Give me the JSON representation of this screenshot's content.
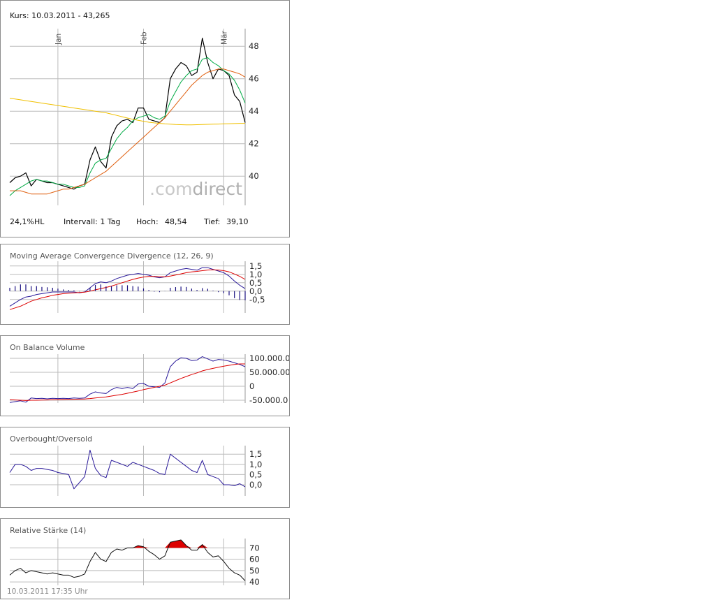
{
  "header": {
    "title": "Kurs: 10.03.2011 - 43,265"
  },
  "info": {
    "hl": "24,1%HL",
    "interval": "Intervall: 1 Tag",
    "high_label": "Hoch:",
    "high_value": "48,54",
    "low_label": "Tief:",
    "low_value": "39,10"
  },
  "brand": {
    "dot": ".",
    "com": "com",
    "direct": "direct"
  },
  "months": [
    "Jan",
    "Feb",
    "Mär"
  ],
  "footer": {
    "timestamp": "10.03.2011 17:35 Uhr"
  },
  "colors": {
    "price": "#000000",
    "ma_short": "#00aa44",
    "ma_mid": "#e06010",
    "ma_long": "#f0c000",
    "macd": "#2a1a9a",
    "signal": "#dd0000",
    "histogram": "#1a1080",
    "overbought_fill": "#dd0000",
    "grid": "#bbbbbb"
  },
  "chart_data": [
    {
      "type": "line",
      "title": "Kurs: 10.03.2011 - 43,265",
      "y_ticks": [
        "40",
        "42",
        "44",
        "46",
        "48"
      ],
      "ylim": [
        38.2,
        49.0
      ],
      "months": [
        "Jan",
        "Feb",
        "Mär"
      ],
      "month_positions": [
        9,
        25,
        40
      ],
      "n_points": 45,
      "grid": true,
      "series": [
        {
          "key": "price",
          "values": [
            39.6,
            39.9,
            40.0,
            40.2,
            39.4,
            39.8,
            39.7,
            39.6,
            39.6,
            39.5,
            39.4,
            39.3,
            39.2,
            39.4,
            39.5,
            41.0,
            41.8,
            40.9,
            40.5,
            42.4,
            43.1,
            43.4,
            43.5,
            43.3,
            44.2,
            44.2,
            43.5,
            43.4,
            43.3,
            43.6,
            46.0,
            46.6,
            47.0,
            46.8,
            46.2,
            46.4,
            48.5,
            47.0,
            46.0,
            46.6,
            46.5,
            46.2,
            45.0,
            44.6,
            43.3
          ]
        },
        {
          "key": "ma_short",
          "values": [
            38.8,
            39.1,
            39.3,
            39.5,
            39.7,
            39.8,
            39.7,
            39.7,
            39.6,
            39.5,
            39.5,
            39.4,
            39.3,
            39.3,
            39.4,
            40.2,
            40.8,
            41.0,
            41.1,
            41.7,
            42.3,
            42.7,
            43.0,
            43.4,
            43.6,
            43.7,
            43.8,
            43.6,
            43.5,
            43.7,
            44.6,
            45.2,
            45.8,
            46.2,
            46.5,
            46.6,
            47.2,
            47.3,
            47.0,
            46.8,
            46.5,
            46.3,
            45.9,
            45.3,
            44.5
          ]
        },
        {
          "key": "ma_mid",
          "values": [
            39.1,
            39.1,
            39.1,
            39.0,
            38.9,
            38.9,
            38.9,
            38.9,
            39.0,
            39.1,
            39.2,
            39.2,
            39.3,
            39.4,
            39.5,
            39.7,
            39.9,
            40.1,
            40.3,
            40.6,
            40.9,
            41.2,
            41.5,
            41.8,
            42.1,
            42.4,
            42.7,
            43.0,
            43.3,
            43.6,
            44.0,
            44.4,
            44.8,
            45.2,
            45.6,
            45.9,
            46.2,
            46.4,
            46.5,
            46.6,
            46.6,
            46.5,
            46.4,
            46.3,
            46.1
          ]
        },
        {
          "key": "ma_long",
          "values": [
            44.8,
            44.75,
            44.7,
            44.65,
            44.6,
            44.55,
            44.5,
            44.45,
            44.4,
            44.35,
            44.3,
            44.25,
            44.2,
            44.15,
            44.1,
            44.05,
            44.0,
            43.95,
            43.9,
            43.82,
            43.74,
            43.66,
            43.58,
            43.5,
            43.44,
            43.38,
            43.32,
            43.28,
            43.25,
            43.22,
            43.2,
            43.18,
            43.17,
            43.16,
            43.16,
            43.17,
            43.18,
            43.19,
            43.2,
            43.21,
            43.22,
            43.23,
            43.24,
            43.25,
            43.25
          ]
        }
      ]
    },
    {
      "type": "line",
      "title": "Moving Average Convergence Divergence (12, 26, 9)",
      "y_ticks": [
        "1,5",
        "1,0",
        "0,5",
        "0,0",
        "-0,5"
      ],
      "ylim": [
        -1.3,
        1.7
      ],
      "n_points": 45,
      "grid": true,
      "series": [
        {
          "key": "macd",
          "values": [
            -0.9,
            -0.7,
            -0.5,
            -0.35,
            -0.3,
            -0.2,
            -0.15,
            -0.1,
            -0.05,
            -0.05,
            -0.05,
            -0.05,
            -0.05,
            -0.1,
            -0.05,
            0.2,
            0.45,
            0.55,
            0.5,
            0.6,
            0.75,
            0.85,
            0.95,
            1.0,
            1.05,
            1.0,
            0.95,
            0.85,
            0.8,
            0.85,
            1.1,
            1.2,
            1.3,
            1.35,
            1.3,
            1.25,
            1.4,
            1.4,
            1.3,
            1.2,
            1.1,
            0.9,
            0.6,
            0.35,
            0.15
          ]
        },
        {
          "key": "signal",
          "values": [
            -1.1,
            -1.0,
            -0.9,
            -0.75,
            -0.6,
            -0.5,
            -0.4,
            -0.33,
            -0.25,
            -0.2,
            -0.15,
            -0.12,
            -0.1,
            -0.08,
            -0.06,
            0.0,
            0.08,
            0.15,
            0.22,
            0.3,
            0.4,
            0.5,
            0.6,
            0.7,
            0.78,
            0.84,
            0.88,
            0.88,
            0.86,
            0.86,
            0.9,
            0.96,
            1.03,
            1.1,
            1.15,
            1.18,
            1.22,
            1.26,
            1.27,
            1.26,
            1.22,
            1.15,
            1.02,
            0.88,
            0.7
          ]
        },
        {
          "key": "histogram",
          "type": "bar",
          "values": [
            0.2,
            0.3,
            0.4,
            0.4,
            0.3,
            0.3,
            0.25,
            0.23,
            0.2,
            0.15,
            0.1,
            0.07,
            0.05,
            -0.02,
            0.01,
            0.2,
            0.37,
            0.4,
            0.28,
            0.3,
            0.35,
            0.35,
            0.35,
            0.3,
            0.27,
            0.16,
            0.07,
            -0.03,
            -0.06,
            -0.01,
            0.2,
            0.24,
            0.27,
            0.25,
            0.15,
            0.07,
            0.18,
            0.14,
            0.03,
            -0.06,
            -0.12,
            -0.25,
            -0.42,
            -0.53,
            -0.55
          ]
        }
      ]
    },
    {
      "type": "line",
      "title": "On Balance Volume",
      "y_ticks": [
        "100.000.0",
        "50.000.00",
        "0",
        "-50.000.0"
      ],
      "y_tick_values": [
        100000000,
        50000000,
        0,
        -50000000
      ],
      "ylim": [
        -60000000,
        110000000
      ],
      "n_points": 45,
      "grid": true,
      "series": [
        {
          "key": "obv",
          "values": [
            -58000000,
            -55000000,
            -52000000,
            -57000000,
            -42000000,
            -44000000,
            -43000000,
            -45000000,
            -43000000,
            -44000000,
            -43000000,
            -44000000,
            -42000000,
            -43000000,
            -42000000,
            -28000000,
            -20000000,
            -24000000,
            -26000000,
            -12000000,
            -4000000,
            -8000000,
            -4000000,
            -8000000,
            8000000,
            10000000,
            0,
            -2000000,
            -4000000,
            12000000,
            70000000,
            90000000,
            102000000,
            100000000,
            92000000,
            94000000,
            106000000,
            98000000,
            90000000,
            96000000,
            94000000,
            90000000,
            84000000,
            78000000,
            70000000
          ]
        },
        {
          "key": "obv_ma",
          "values": [
            -48000000,
            -49000000,
            -50000000,
            -51000000,
            -50000000,
            -50000000,
            -49500000,
            -49000000,
            -48500000,
            -48000000,
            -47500000,
            -47000000,
            -46500000,
            -46000000,
            -45500000,
            -44000000,
            -42000000,
            -40000000,
            -38000000,
            -35000000,
            -32000000,
            -29000000,
            -25000000,
            -21000000,
            -17000000,
            -12000000,
            -8000000,
            -4000000,
            0,
            4000000,
            12000000,
            20000000,
            28000000,
            35000000,
            42000000,
            48000000,
            55000000,
            60000000,
            64000000,
            68000000,
            72000000,
            75000000,
            78000000,
            80000000,
            80000000
          ]
        }
      ]
    },
    {
      "type": "line",
      "title": "Overbought/Oversold",
      "y_ticks": [
        "1,5",
        "1,0",
        "0,5",
        "0,0"
      ],
      "ylim": [
        -0.55,
        1.85
      ],
      "n_points": 45,
      "grid": true,
      "series": [
        {
          "key": "obos",
          "values": [
            0.6,
            1.0,
            1.0,
            0.9,
            0.7,
            0.8,
            0.8,
            0.75,
            0.7,
            0.6,
            0.55,
            0.5,
            -0.2,
            0.1,
            0.4,
            1.7,
            0.8,
            0.45,
            0.35,
            1.2,
            1.1,
            1.0,
            0.9,
            1.1,
            1.0,
            0.9,
            0.8,
            0.7,
            0.55,
            0.5,
            1.5,
            1.3,
            1.1,
            0.9,
            0.7,
            0.6,
            1.2,
            0.5,
            0.4,
            0.3,
            0.0,
            0.0,
            -0.05,
            0.05,
            -0.1
          ]
        }
      ]
    },
    {
      "type": "line",
      "title": "Relative Stärke (14)",
      "y_ticks": [
        "70",
        "60",
        "50",
        "40"
      ],
      "ylim": [
        37,
        77
      ],
      "n_points": 45,
      "grid": true,
      "overbought_level": 70,
      "series": [
        {
          "key": "rsi",
          "values": [
            46,
            50,
            52,
            48,
            50,
            49,
            48,
            47,
            48,
            47,
            46,
            46,
            44,
            45,
            47,
            58,
            66,
            60,
            58,
            66,
            69,
            68,
            70,
            70,
            72,
            71,
            67,
            64,
            60,
            63,
            75,
            76,
            77,
            72,
            68,
            68,
            73,
            66,
            62,
            63,
            58,
            52,
            48,
            46,
            41
          ]
        }
      ]
    }
  ]
}
